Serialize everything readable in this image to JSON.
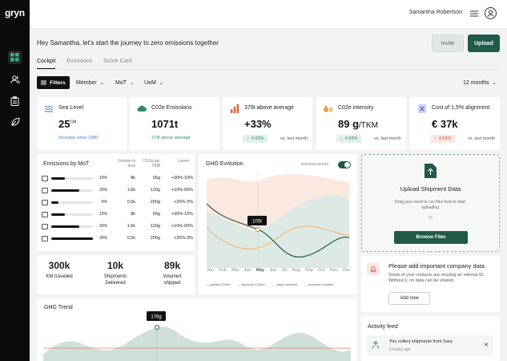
{
  "app": {
    "logo": "gryn",
    "user": "Samantha Robertson"
  },
  "header": {
    "greeting": "Hey Samantha, let's start the journey to zero emissions together",
    "invite": "Invite",
    "upload": "Upload"
  },
  "tabs": [
    {
      "label": "Cockpit"
    },
    {
      "label": "Emissions"
    },
    {
      "label": "Score Card"
    }
  ],
  "filters": {
    "button": "Filters",
    "mode": "Member",
    "mot": "MoT",
    "uom": "UoM",
    "period": "12 months"
  },
  "kpis": [
    {
      "title": "Sea Level",
      "value": "25",
      "sup": "CM",
      "sub": "Increase since 1880",
      "icon": "wave-icon",
      "color": "#4a7cc7"
    },
    {
      "title": "C02e Emissions",
      "value": "1071t",
      "sub": "379t above average",
      "icon": "cloud-co2-icon",
      "color": "#2e8b6f"
    },
    {
      "title": "379t above average",
      "value": "+33%",
      "badge": "4.63%",
      "vs": "vs. last month",
      "icon": "bar-chart-icon",
      "color": "#e0603a"
    },
    {
      "title": "C02e intensity",
      "value": "89 g",
      "unit": "/TKM",
      "badge": "4.63%",
      "vs": "vs. last month",
      "icon": "drops-icon",
      "color": "#e8a04a"
    },
    {
      "title": "Cost of 1,5% alignment",
      "value": "€ 37k",
      "badge": "4.63%",
      "vs": "vs. last month",
      "icon": "close-square-icon",
      "color": "#7b8ce0"
    }
  ],
  "mot": {
    "title": "Emissions by MoT",
    "headers": {
      "volume": "Volume in tons",
      "co2": "CO2e per TKM",
      "lorem": "Lorem"
    },
    "rows": [
      {
        "icon": "truck-icon",
        "pct": "10%",
        "share": 0.1,
        "volume": "8k",
        "co2": "65g",
        "lorem": "+30%-10%"
      },
      {
        "icon": "train-icon",
        "pct": "20%",
        "share": 0.2,
        "volume": "1,6k",
        "co2": "120g",
        "lorem": "+10%-00%"
      },
      {
        "icon": "ship-icon",
        "pct": "5%",
        "share": 0.05,
        "volume": "0,5k",
        "co2": "200g",
        "lorem": "+20%-3%"
      },
      {
        "icon": "van-icon",
        "pct": "10%",
        "share": 0.1,
        "volume": "8k",
        "co2": "65g",
        "lorem": "+30%-10%"
      },
      {
        "icon": "car-icon",
        "pct": "20%",
        "share": 0.2,
        "volume": "1,6k",
        "co2": "120g",
        "lorem": "+10%-00%"
      },
      {
        "icon": "box-icon",
        "pct": "30%",
        "share": 0.3,
        "volume": "0,5k",
        "co2": "200g",
        "lorem": "+20%-3%"
      }
    ]
  },
  "stats": [
    {
      "value": "300k",
      "label": "KM travelled"
    },
    {
      "value": "10k",
      "label": "Shipments Delivered"
    },
    {
      "value": "89k",
      "label": "Volume/t shipped"
    }
  ],
  "ghg_evo": {
    "title": "GHG Evolution",
    "toggle_label": "previous period",
    "tooltip": "105t",
    "months": [
      "Jan",
      "Feb",
      "Mar",
      "Apr",
      "May",
      "Jun",
      "Jul",
      "Aug",
      "Sep",
      "Oct",
      "Nov",
      "Dec"
    ],
    "legend": [
      "actual CO2e/t",
      "previous CO2e/t",
      "cargo volume/t",
      "previous volume/t"
    ]
  },
  "upload": {
    "title": "Upload Shipment Data",
    "desc": "Drag your excel or csv files here to start uploading",
    "or": "Or",
    "button": "Browse Files"
  },
  "notice": {
    "title": "Please add important company data",
    "desc": "Some of your contacts are missing an internal ID. Without it, no data can be shared.",
    "button": "Add now"
  },
  "trend": {
    "title": "GHG Trend",
    "tooltip": "178g"
  },
  "activity": {
    "title": "Activity feed",
    "item": "You collect shipments from Sara",
    "time": "2 hours ago"
  }
}
